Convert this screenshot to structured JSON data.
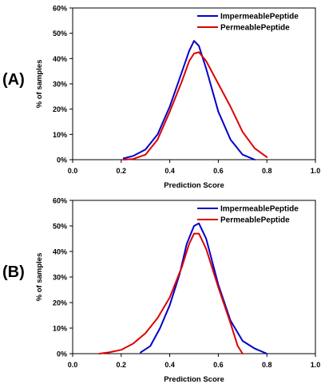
{
  "chart_data": [
    {
      "type": "line",
      "panel_label": "(A)",
      "xlabel": "Prediction Score",
      "ylabel": "% of samples",
      "xlim": [
        0.0,
        1.0
      ],
      "ylim": [
        0,
        60
      ],
      "x_ticks": [
        "0.0",
        "0.2",
        "0.4",
        "0.6",
        "0.8",
        "1.0"
      ],
      "y_ticks": [
        "0%",
        "10%",
        "20%",
        "30%",
        "40%",
        "50%",
        "60%"
      ],
      "legend_position": "top-right",
      "series": [
        {
          "name": "ImpermeablePeptide",
          "color": "#0000cc",
          "x": [
            0.21,
            0.25,
            0.3,
            0.35,
            0.4,
            0.44,
            0.48,
            0.5,
            0.52,
            0.55,
            0.6,
            0.65,
            0.7,
            0.75
          ],
          "y": [
            0.5,
            1.5,
            4,
            10,
            21,
            32,
            43,
            47,
            45,
            36,
            19,
            8,
            2,
            0
          ]
        },
        {
          "name": "PermeablePeptide",
          "color": "#dd0000",
          "x": [
            0.21,
            0.25,
            0.3,
            0.35,
            0.4,
            0.45,
            0.48,
            0.5,
            0.52,
            0.55,
            0.6,
            0.65,
            0.7,
            0.75,
            0.8
          ],
          "y": [
            0,
            0.3,
            2,
            8,
            19,
            31,
            39,
            42,
            42.5,
            39,
            30,
            21,
            11,
            4.5,
            1
          ]
        }
      ]
    },
    {
      "type": "line",
      "panel_label": "(B)",
      "xlabel": "Prediction Score",
      "ylabel": "% of samples",
      "xlim": [
        0.0,
        1.0
      ],
      "ylim": [
        0,
        60
      ],
      "x_ticks": [
        "0.0",
        "0.2",
        "0.4",
        "0.6",
        "0.8",
        "1.0"
      ],
      "y_ticks": [
        "0%",
        "10%",
        "20%",
        "30%",
        "40%",
        "50%",
        "60%"
      ],
      "legend_position": "top-right",
      "series": [
        {
          "name": "ImpermeablePeptide",
          "color": "#0000cc",
          "x": [
            0.28,
            0.32,
            0.36,
            0.4,
            0.44,
            0.47,
            0.5,
            0.52,
            0.55,
            0.6,
            0.65,
            0.7,
            0.75,
            0.8
          ],
          "y": [
            0.5,
            3,
            10,
            19,
            31,
            43,
            50,
            51,
            45,
            27,
            13,
            5,
            2,
            0
          ]
        },
        {
          "name": "PermeablePeptide",
          "color": "#dd0000",
          "x": [
            0.11,
            0.15,
            0.2,
            0.25,
            0.3,
            0.35,
            0.4,
            0.45,
            0.48,
            0.5,
            0.52,
            0.55,
            0.6,
            0.65,
            0.68,
            0.7
          ],
          "y": [
            0,
            0.5,
            1.5,
            4,
            8,
            14,
            22,
            34,
            43,
            47,
            47,
            41,
            26,
            12,
            3,
            0
          ]
        }
      ]
    }
  ]
}
